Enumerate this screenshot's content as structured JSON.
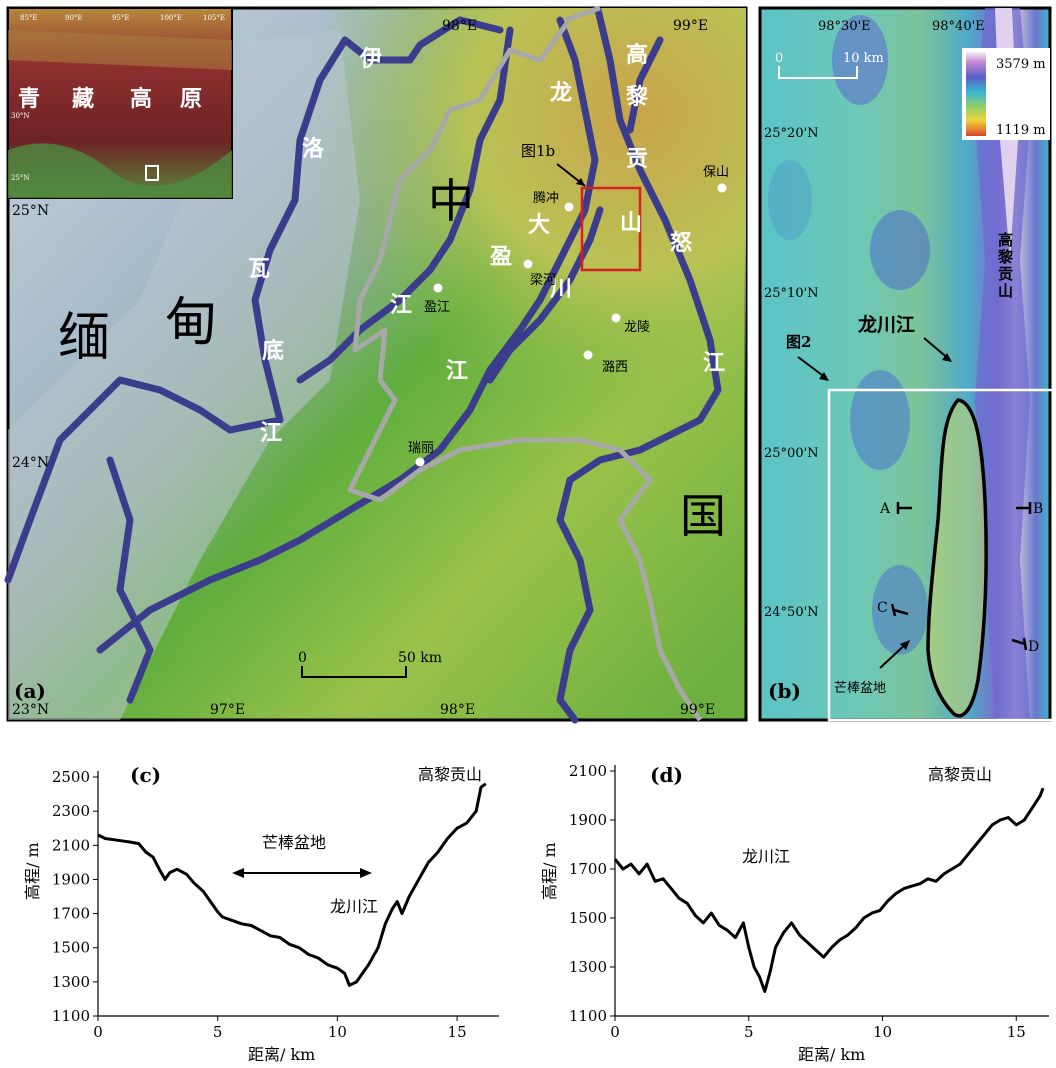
{
  "panel_a": {
    "label": "(a)",
    "lon_top": [
      "98°E",
      "99°E"
    ],
    "lon_bottom": [
      "97°E",
      "98°E",
      "99°E"
    ],
    "lat": [
      "25°N",
      "24°N",
      "23°N"
    ],
    "big_chars": {
      "myanmar_1": "缅",
      "myanmar_2": "甸",
      "china_1": "中",
      "china_2": "国"
    },
    "river_chars": {
      "irrawaddy": [
        "伊",
        "洛",
        "瓦",
        "底",
        "江"
      ],
      "nu": [
        "怒",
        "江"
      ],
      "longchuan": [
        "龙",
        "川",
        "江"
      ],
      "daying": [
        "大",
        "盈",
        "江"
      ],
      "gaoligong": [
        "高",
        "黎",
        "贡",
        "山"
      ]
    },
    "figure_ref": "图1b",
    "towns": [
      "腾冲",
      "保山",
      "梁河",
      "盈江",
      "龙陵",
      "潞西",
      "瑞丽"
    ],
    "scale_label": "50 km",
    "scale_zero": "0",
    "inset": {
      "plateau_chars": [
        "青",
        "藏",
        "高",
        "原"
      ],
      "lon_ticks": [
        "85°E",
        "90°E",
        "95°E",
        "100°E",
        "105°E"
      ],
      "lat_ticks": [
        "30°N",
        "25°N"
      ]
    }
  },
  "panel_b": {
    "label": "(b)",
    "lon_top": [
      "98°30'E",
      "98°40'E"
    ],
    "lat": [
      "25°20'N",
      "25°10'N",
      "25°00'N",
      "24°50'N"
    ],
    "scale_zero": "0",
    "scale_label": "10 km",
    "legend_max": "3579  m",
    "legend_min": "1119  m",
    "river_label": "龙川江",
    "mountain_label": "高黎贡山",
    "figure_ref": "图2",
    "basin_label": "芒棒盆地",
    "profile_points": [
      "A",
      "B",
      "C",
      "D"
    ]
  },
  "colors": {
    "river": "#3b3d8c",
    "border": "#a8a8a8",
    "inset_box": "#d81f1f",
    "basin_outline": "#000000",
    "profile_line": "#000000"
  },
  "chart_data": [
    {
      "type": "line",
      "panel": "(c)",
      "xlabel": "距离/ km",
      "ylabel": "高程/ m",
      "xlim": [
        0,
        16.5
      ],
      "ylim": [
        1100,
        2500
      ],
      "xticks": [
        0,
        5,
        10,
        15
      ],
      "yticks": [
        1100,
        1300,
        1500,
        1700,
        1900,
        2100,
        2300,
        2500
      ],
      "annotations": [
        "高黎贡山",
        "芒棒盆地",
        "龙川江"
      ],
      "x": [
        0,
        0.3,
        0.8,
        1.3,
        1.7,
        2.0,
        2.3,
        2.6,
        2.8,
        3.0,
        3.3,
        3.7,
        4.0,
        4.4,
        4.7,
        5.0,
        5.2,
        5.6,
        6.0,
        6.4,
        6.8,
        7.2,
        7.6,
        8.0,
        8.4,
        8.8,
        9.2,
        9.6,
        10.0,
        10.3,
        10.5,
        10.8,
        11.0,
        11.3,
        11.7,
        12.0,
        12.3,
        12.5,
        12.7,
        13.0,
        13.4,
        13.8,
        14.2,
        14.6,
        15.0,
        15.4,
        15.8,
        16.0,
        16.2
      ],
      "y": [
        2160,
        2140,
        2130,
        2120,
        2110,
        2060,
        2030,
        1950,
        1900,
        1940,
        1960,
        1930,
        1880,
        1830,
        1770,
        1710,
        1680,
        1660,
        1640,
        1630,
        1600,
        1570,
        1560,
        1520,
        1500,
        1460,
        1440,
        1400,
        1380,
        1350,
        1280,
        1300,
        1340,
        1400,
        1500,
        1640,
        1730,
        1770,
        1700,
        1800,
        1900,
        2000,
        2060,
        2140,
        2200,
        2230,
        2300,
        2440,
        2460
      ]
    },
    {
      "type": "line",
      "panel": "(d)",
      "xlabel": "距离/ km",
      "ylabel": "高程/ m",
      "xlim": [
        0,
        16
      ],
      "ylim": [
        1100,
        2100
      ],
      "xticks": [
        0,
        5,
        10,
        15
      ],
      "yticks": [
        1100,
        1300,
        1500,
        1700,
        1900,
        2100
      ],
      "annotations": [
        "高黎贡山",
        "龙川江"
      ],
      "x": [
        0,
        0.3,
        0.6,
        0.9,
        1.2,
        1.5,
        1.8,
        2.1,
        2.4,
        2.7,
        3.0,
        3.3,
        3.6,
        3.9,
        4.2,
        4.5,
        4.8,
        5.0,
        5.2,
        5.4,
        5.6,
        5.8,
        6.0,
        6.3,
        6.6,
        6.9,
        7.2,
        7.5,
        7.8,
        8.1,
        8.4,
        8.7,
        9.0,
        9.3,
        9.6,
        9.9,
        10.2,
        10.5,
        10.8,
        11.1,
        11.4,
        11.7,
        12.0,
        12.3,
        12.6,
        12.9,
        13.2,
        13.5,
        13.8,
        14.1,
        14.4,
        14.7,
        15.0,
        15.3,
        15.6,
        15.9,
        16.0
      ],
      "y": [
        1740,
        1700,
        1720,
        1680,
        1720,
        1650,
        1660,
        1620,
        1580,
        1560,
        1510,
        1480,
        1520,
        1470,
        1450,
        1420,
        1480,
        1380,
        1300,
        1260,
        1200,
        1280,
        1380,
        1440,
        1480,
        1430,
        1400,
        1370,
        1340,
        1380,
        1410,
        1430,
        1460,
        1500,
        1520,
        1530,
        1570,
        1600,
        1620,
        1630,
        1640,
        1660,
        1650,
        1680,
        1700,
        1720,
        1760,
        1800,
        1840,
        1880,
        1900,
        1910,
        1880,
        1900,
        1950,
        2000,
        2030
      ]
    }
  ]
}
